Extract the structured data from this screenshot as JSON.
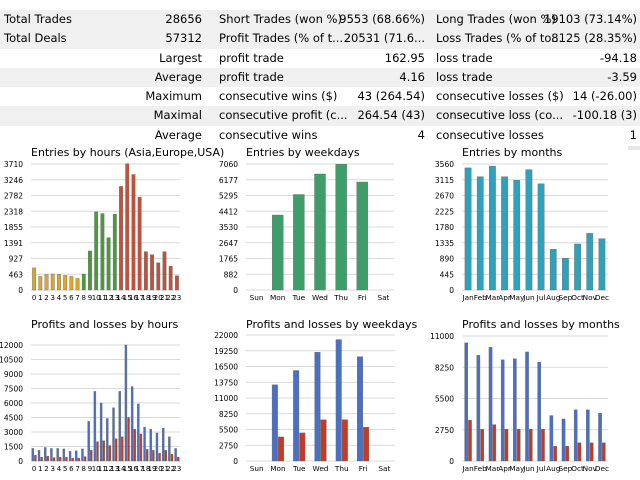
{
  "stats": {
    "rows": [
      {
        "c1": "Total Trades",
        "c2": "28656",
        "c3": "Short Trades (won %)",
        "c4": "9553 (68.66%)",
        "c5": "Long Trades (won %)",
        "c6": "19103 (73.14%)"
      },
      {
        "c1": "Total Deals",
        "c2": "57312",
        "c3": "Profit Trades (% of t...",
        "c4": "20531 (71.6...",
        "c5": "Loss Trades (% of to...",
        "c6": "8125 (28.35%)"
      },
      {
        "c1": "",
        "c2": "Largest",
        "c3": "profit trade",
        "c4": "162.95",
        "c5": "loss trade",
        "c6": "-94.18"
      },
      {
        "c1": "",
        "c2": "Average",
        "c3": "profit trade",
        "c4": "4.16",
        "c5": "loss trade",
        "c6": "-3.59"
      },
      {
        "c1": "",
        "c2": "Maximum",
        "c3": "consecutive wins ($)",
        "c4": "43 (264.54)",
        "c5": "consecutive losses ($)",
        "c6": "14 (-26.00)"
      },
      {
        "c1": "",
        "c2": "Maximal",
        "c3": "consecutive profit (c...",
        "c4": "264.54 (43)",
        "c5": "consecutive loss (co...",
        "c6": "-100.18 (3)"
      },
      {
        "c1": "",
        "c2": "Average",
        "c3": "consecutive wins",
        "c4": "4",
        "c5": "consecutive losses",
        "c6": "1"
      }
    ]
  },
  "colors": {
    "grid": "#d9d9d9",
    "asia": "#e0a526",
    "europe": "#4b9a3a",
    "usa": "#c2503a",
    "weekday": "#3e9e6a",
    "month": "#2fa1bb",
    "profit": "#4a6fc6",
    "loss": "#c33b25",
    "bar_edge": "#6a6a6a"
  },
  "chart_data": [
    {
      "id": "entries-hours",
      "type": "bar",
      "title": "Entries by hours (Asia,Europe,USA)",
      "categories": [
        "0",
        "1",
        "2",
        "3",
        "4",
        "5",
        "6",
        "7",
        "8",
        "9",
        "10",
        "11",
        "12",
        "13",
        "14",
        "15",
        "16",
        "17",
        "18",
        "19",
        "20",
        "21",
        "22",
        "23"
      ],
      "ticks": [
        0,
        463,
        927,
        1391,
        1855,
        2318,
        2782,
        3246,
        3710
      ],
      "ylim": [
        0,
        3710
      ],
      "values": [
        650,
        400,
        460,
        470,
        460,
        430,
        400,
        340,
        470,
        1150,
        2300,
        2250,
        1540,
        2230,
        3050,
        3720,
        3400,
        2730,
        1130,
        1040,
        800,
        1130,
        700,
        420
      ],
      "groups": [
        "asia",
        "asia",
        "asia",
        "asia",
        "asia",
        "asia",
        "asia",
        "asia",
        "europe",
        "europe",
        "europe",
        "europe",
        "europe",
        "europe",
        "usa",
        "usa",
        "usa",
        "usa",
        "usa",
        "usa",
        "usa",
        "usa",
        "usa",
        "usa"
      ]
    },
    {
      "id": "entries-weekdays",
      "type": "bar",
      "title": "Entries by weekdays",
      "categories": [
        "Sun",
        "Mon",
        "Tue",
        "Wed",
        "Thu",
        "Fri",
        "Sat"
      ],
      "ticks": [
        0,
        882,
        1765,
        2647,
        3530,
        4412,
        5295,
        6177,
        7060
      ],
      "ylim": [
        0,
        7060
      ],
      "values": [
        0,
        4200,
        5350,
        6500,
        7050,
        6050,
        0
      ]
    },
    {
      "id": "entries-months",
      "type": "bar",
      "title": "Entries by months",
      "categories": [
        "Jan",
        "Feb",
        "Mar",
        "Apr",
        "May",
        "Jun",
        "Jul",
        "Aug",
        "Sep",
        "Oct",
        "Nov",
        "Dec"
      ],
      "ticks": [
        0,
        445,
        890,
        1335,
        1780,
        2225,
        2670,
        3115,
        3560
      ],
      "ylim": [
        0,
        3560
      ],
      "values": [
        3450,
        3200,
        3500,
        3200,
        3100,
        3400,
        3000,
        1150,
        900,
        1300,
        1600,
        1450
      ]
    },
    {
      "id": "pl-hours",
      "type": "bar",
      "title": "Profits and losses by hours",
      "categories": [
        "0",
        "1",
        "2",
        "3",
        "4",
        "5",
        "6",
        "7",
        "8",
        "9",
        "10",
        "11",
        "12",
        "13",
        "14",
        "15",
        "16",
        "17",
        "18",
        "19",
        "20",
        "21",
        "22",
        "23"
      ],
      "ticks": [
        0,
        1500,
        3000,
        4500,
        6000,
        7500,
        9000,
        10500,
        12000
      ],
      "ylim": [
        0,
        12000
      ],
      "series": [
        {
          "key": "profit",
          "values": [
            1300,
            1100,
            1400,
            1300,
            1300,
            1250,
            1000,
            1050,
            1250,
            4100,
            7200,
            6000,
            4400,
            5500,
            7200,
            12000,
            7700,
            5900,
            3500,
            3300,
            2900,
            3400,
            2500,
            1300
          ]
        },
        {
          "key": "loss",
          "values": [
            600,
            400,
            500,
            350,
            400,
            400,
            300,
            300,
            450,
            1100,
            2000,
            2100,
            1600,
            2300,
            2500,
            4500,
            3300,
            2800,
            1200,
            1100,
            800,
            1100,
            700,
            400
          ]
        }
      ]
    },
    {
      "id": "pl-weekdays",
      "type": "bar",
      "title": "Profits and losses by weekdays",
      "categories": [
        "Sun",
        "Mon",
        "Tue",
        "Wed",
        "Thu",
        "Fri",
        "Sat"
      ],
      "ticks": [
        0,
        2750,
        5500,
        8250,
        11000,
        13750,
        16500,
        19250,
        22000
      ],
      "ylim": [
        0,
        22000
      ],
      "series": [
        {
          "key": "profit",
          "values": [
            0,
            13300,
            15800,
            19000,
            21200,
            18200,
            0
          ]
        },
        {
          "key": "loss",
          "values": [
            0,
            4200,
            4900,
            7200,
            7200,
            5900,
            0
          ]
        }
      ]
    },
    {
      "id": "pl-months",
      "type": "bar",
      "title": "Profits and losses by months",
      "categories": [
        "Jan",
        "Feb",
        "Mar",
        "Apr",
        "May",
        "Jun",
        "Jul",
        "Aug",
        "Sep",
        "Oct",
        "Nov",
        "Dec"
      ],
      "ticks": [
        0,
        2750,
        5500,
        8250,
        11000
      ],
      "ylim": [
        0,
        11000
      ],
      "series": [
        {
          "key": "profit",
          "values": [
            10400,
            9300,
            10000,
            8900,
            9000,
            9600,
            8700,
            4000,
            3700,
            4500,
            4500,
            4200
          ]
        },
        {
          "key": "loss",
          "values": [
            3600,
            2800,
            3200,
            2800,
            2800,
            2800,
            2800,
            1300,
            1300,
            1600,
            1600,
            1600
          ]
        }
      ]
    }
  ]
}
